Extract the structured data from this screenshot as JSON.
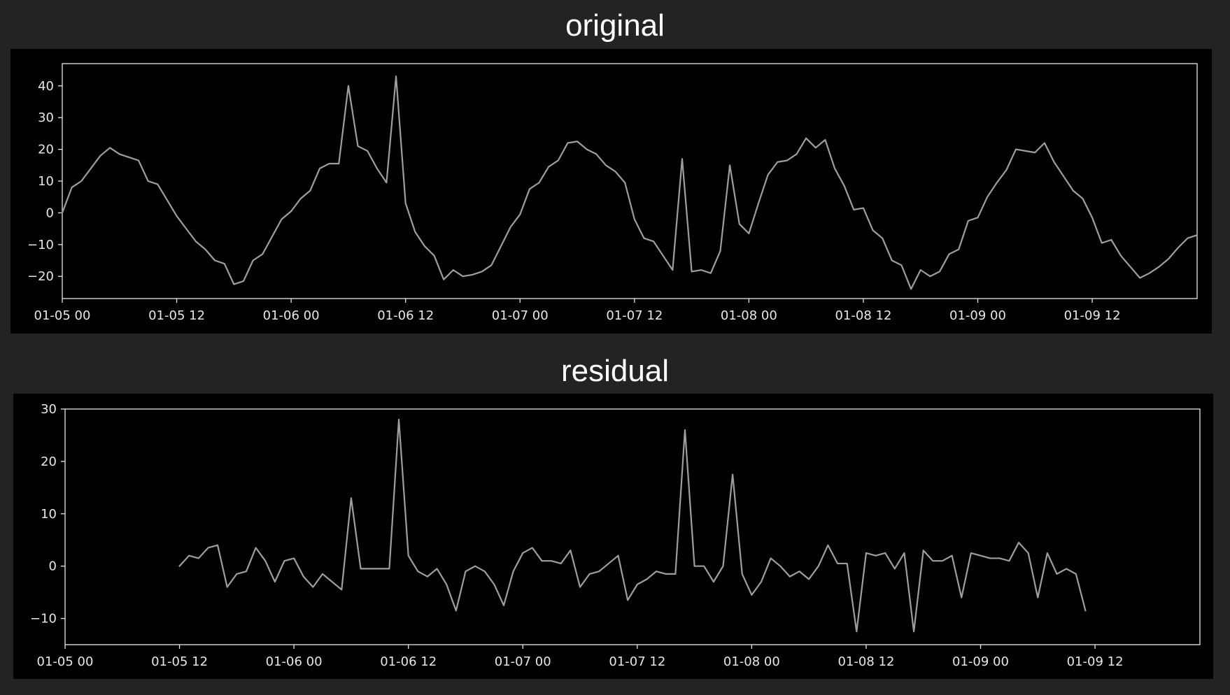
{
  "colors": {
    "background": "#232323",
    "plot_bg": "#000000",
    "line": "#9e9e9e",
    "axes": "#e6e6e6",
    "title": "#ffffff"
  },
  "chart_data": [
    {
      "type": "line",
      "title": "original",
      "xlabel": "",
      "ylabel": "",
      "grid": false,
      "x_start": "01-05 00",
      "x_step": "1 hour",
      "xlim": [
        "01-05 00",
        "01-09 23"
      ],
      "ylim": [
        -27,
        47
      ],
      "yticks": [
        -20,
        -10,
        0,
        10,
        20,
        30,
        40
      ],
      "ytick_labels": [
        "−20",
        "−10",
        "0",
        "10",
        "20",
        "30",
        "40"
      ],
      "xtick_labels": [
        "01-05 00",
        "01-05 12",
        "01-06 00",
        "01-06 12",
        "01-07 00",
        "01-07 12",
        "01-08 00",
        "01-08 12",
        "01-09 00",
        "01-09 12"
      ],
      "series": [
        {
          "values": [
            0,
            8,
            10,
            14,
            18,
            20.5,
            18.5,
            17.5,
            16.5,
            10,
            9,
            4,
            -1,
            -5,
            -9,
            -11.5,
            -15,
            -16,
            -22.5,
            -21.5,
            -15,
            -13,
            -7.5,
            -2,
            0.5,
            4.5,
            7,
            14,
            15.5,
            15.5,
            40,
            21,
            19.5,
            14,
            9.5,
            43,
            3,
            -6,
            -10.5,
            -13.5,
            -21,
            -18,
            -20,
            -19.5,
            -18.5,
            -16.5,
            -10.5,
            -4.5,
            -0.5,
            7.5,
            9.5,
            14.5,
            16.5,
            22,
            22.5,
            20,
            18.5,
            15,
            13,
            9.5,
            -2,
            -8,
            -9,
            -13.5,
            -18,
            17,
            -18.5,
            -18,
            -19,
            -12,
            15,
            -3.5,
            -6.5,
            3,
            12,
            16,
            16.5,
            18.5,
            23.5,
            20.5,
            23,
            14,
            8.5,
            1,
            1.5,
            -5.5,
            -8,
            -15,
            -16.5,
            -24,
            -18,
            -20,
            -18.5,
            -13,
            -11.5,
            -2.5,
            -1.5,
            5,
            9.5,
            13.5,
            20,
            19.5,
            19,
            22,
            16,
            11.5,
            7,
            4.5,
            -1.5,
            -9.5,
            -8.5,
            -13.5,
            -17,
            -20.5,
            -19,
            -17,
            -14.5,
            -11,
            -8,
            -7
          ]
        }
      ]
    },
    {
      "type": "line",
      "title": "residual",
      "xlabel": "",
      "ylabel": "",
      "grid": false,
      "x_start": "01-05 12",
      "x_step": "1 hour",
      "xlim": [
        "01-05 00",
        "01-09 23"
      ],
      "ylim": [
        -15,
        30
      ],
      "yticks": [
        -10,
        0,
        10,
        20,
        30
      ],
      "ytick_labels": [
        "−10",
        "0",
        "10",
        "20",
        "30"
      ],
      "xtick_labels": [
        "01-05 00",
        "01-05 12",
        "01-06 00",
        "01-06 12",
        "01-07 00",
        "01-07 12",
        "01-08 00",
        "01-08 12",
        "01-09 00",
        "01-09 12"
      ],
      "series": [
        {
          "values": [
            0,
            2,
            1.5,
            3.5,
            4,
            -4,
            -1.5,
            -1,
            3.5,
            1,
            -3,
            1,
            1.5,
            -2,
            -4,
            -1.5,
            -3,
            -4.5,
            13,
            -0.5,
            -0.5,
            -0.5,
            -0.5,
            28,
            2,
            -1,
            -2,
            -0.5,
            -3.5,
            -8.5,
            -1,
            0,
            -1,
            -3.5,
            -7.5,
            -1,
            2.5,
            3.5,
            1,
            1,
            0.5,
            3,
            -4,
            -1.5,
            -1,
            0.5,
            2,
            -6.5,
            -3.5,
            -2.5,
            -1,
            -1.5,
            -1.5,
            26,
            0,
            0,
            -3,
            0,
            17.5,
            -1.5,
            -5.5,
            -3,
            1.5,
            0,
            -2,
            -1,
            -2.5,
            0,
            4,
            0.5,
            0.5,
            -12.5,
            2.5,
            2,
            2.5,
            -0.5,
            2.5,
            -12.5,
            3,
            1,
            1,
            2,
            -6,
            2.5,
            2,
            1.5,
            1.5,
            1,
            4.5,
            2.5,
            -6,
            2.5,
            -1.5,
            -0.5,
            -1.5,
            -8.5
          ]
        }
      ]
    }
  ]
}
